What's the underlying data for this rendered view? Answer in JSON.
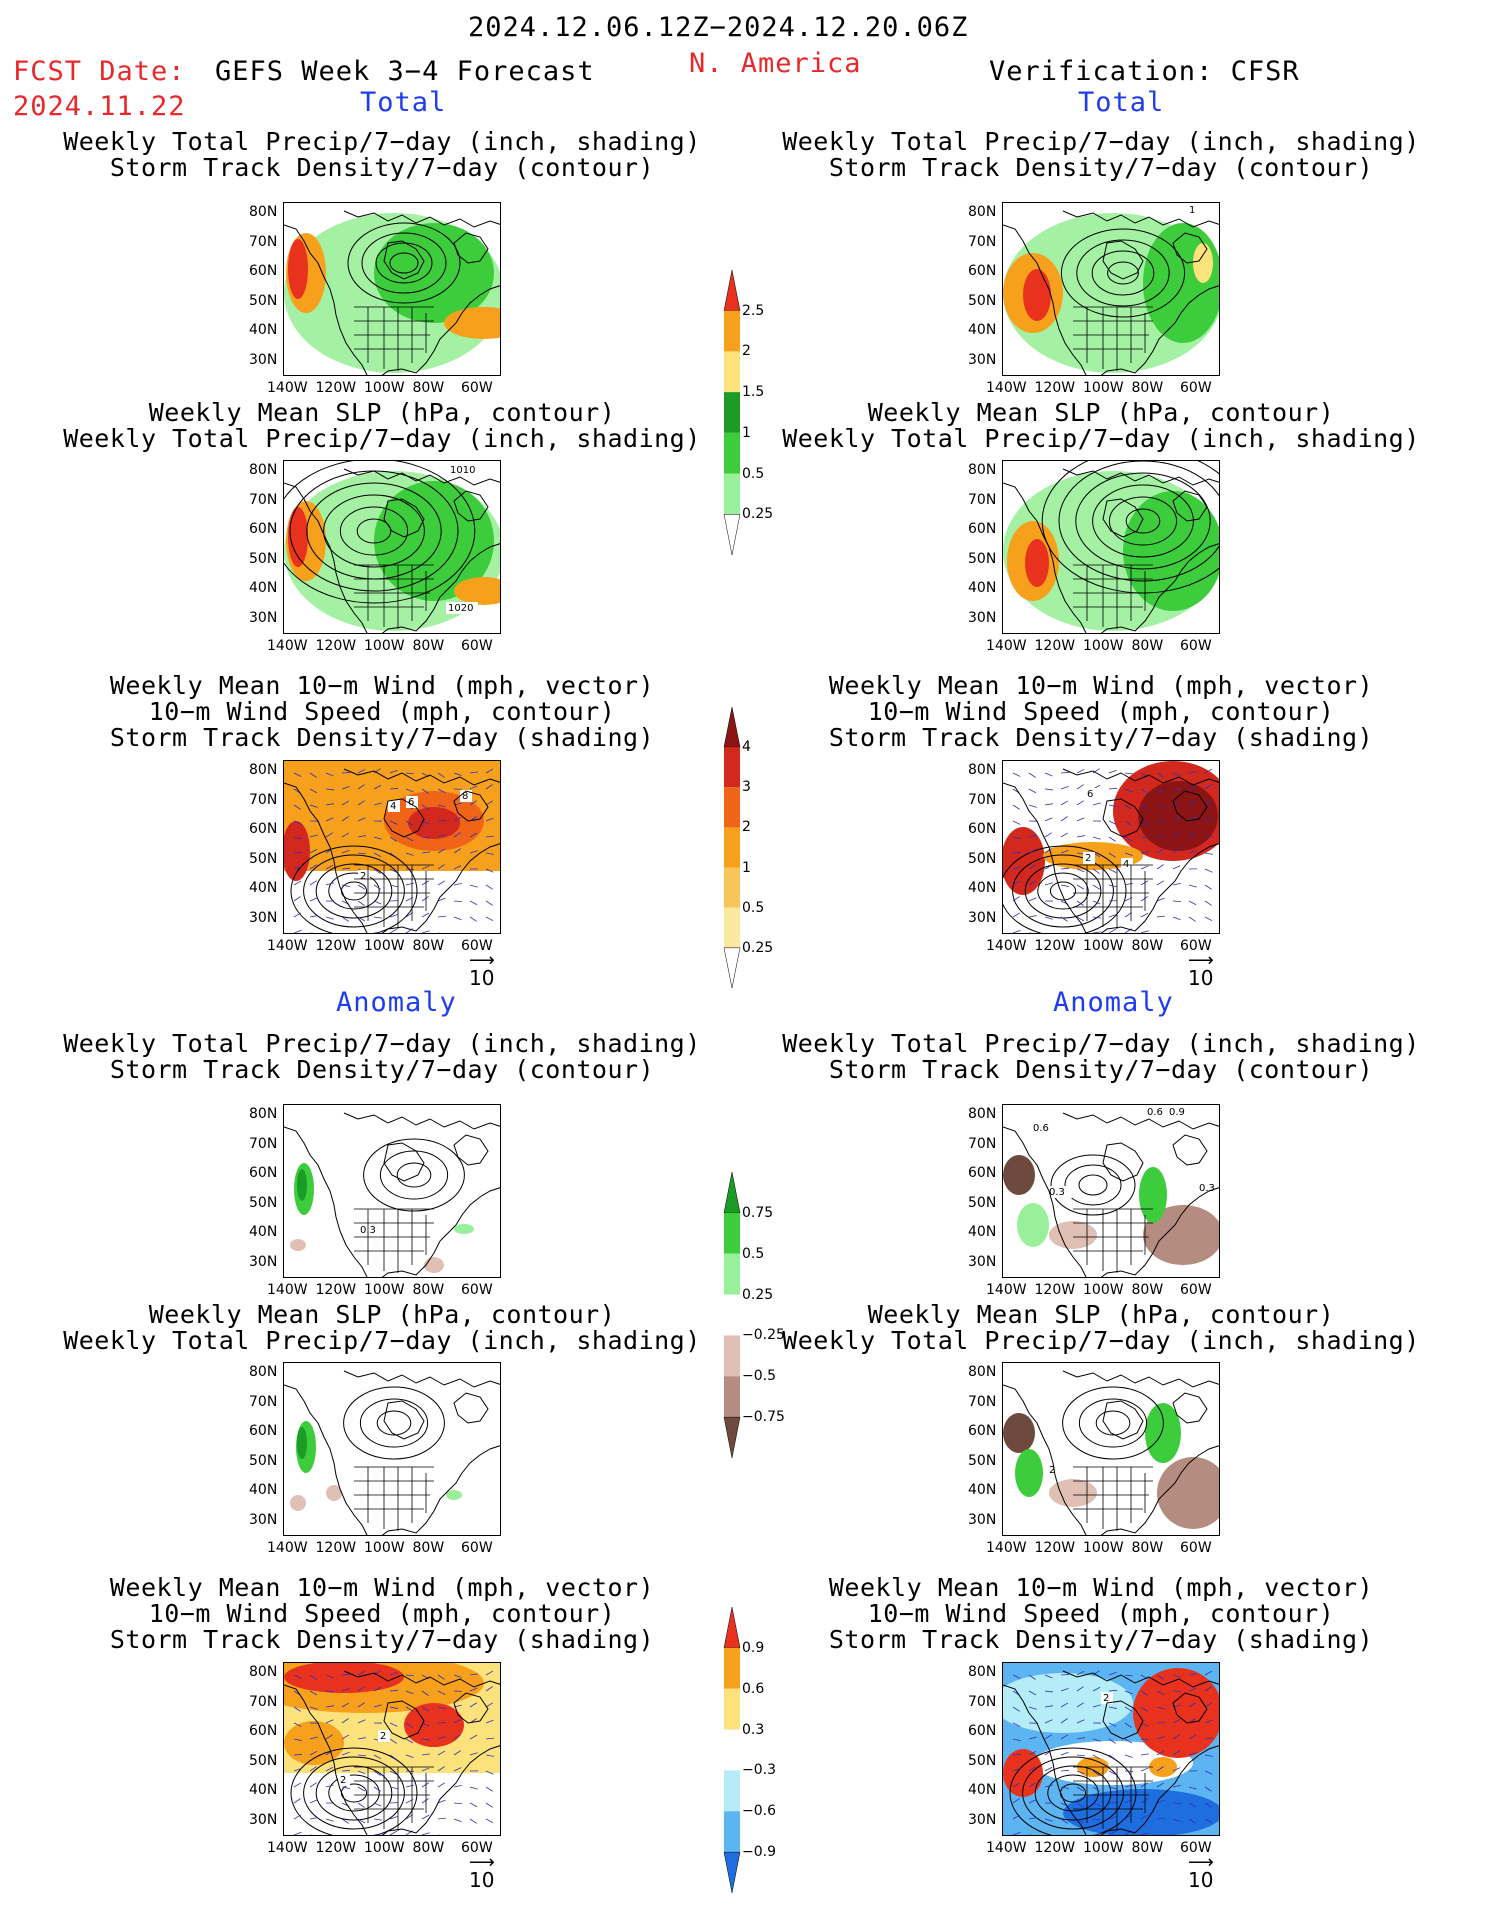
{
  "header": {
    "date_range": "2024.12.06.12Z−2024.12.20.06Z",
    "fcst_label": "FCST Date:",
    "fcst_date": "2024.11.22",
    "product": "GEFS Week 3−4 Forecast",
    "region": "N. America",
    "verification": "Verification: CFSR"
  },
  "sections": {
    "total": "Total",
    "anomaly": "Anomaly"
  },
  "titles": {
    "precip_storm": [
      "Weekly Total Precip/7−day (inch, shading)",
      "Storm Track Density/7−day (contour)"
    ],
    "slp_precip": [
      "Weekly Mean SLP (hPa, contour)",
      "Weekly Total Precip/7−day (inch, shading)"
    ],
    "wind_storm": [
      "Weekly Mean 10−m Wind (mph, vector)",
      "10−m Wind Speed (mph, contour)",
      "Storm Track Density/7−day (shading)"
    ]
  },
  "axes": {
    "lat_labels": [
      "80N",
      "70N",
      "60N",
      "50N",
      "40N",
      "30N"
    ],
    "lon_labels": [
      "140W",
      "120W",
      "100W",
      "80W",
      "60W"
    ]
  },
  "vector_ref": "10",
  "contour_labels": {
    "total_slp_a": "1010",
    "total_slp_b": "1020",
    "total_storm_cfsr": "1",
    "wind_gefs": [
      "4",
      "6",
      "8",
      "2"
    ],
    "wind_cfsr": [
      "2",
      "4",
      "6"
    ],
    "anom_storm_gefs": "0.3",
    "anom_storm_cfsr": [
      "0.6",
      "0.9",
      "0.6",
      "0.3",
      "0.3"
    ],
    "anom_slp_cfsr": "2",
    "anom_wind_gefs": [
      "2",
      "2"
    ],
    "anom_wind_cfsr": [
      "2"
    ]
  },
  "colorbars": {
    "precip_total": {
      "labels": [
        "2.5",
        "2",
        "1.5",
        "1",
        "0.5",
        "0.25"
      ],
      "colors": [
        "#e8321e",
        "#f7a01c",
        "#fbe27a",
        "#1a9c26",
        "#3ccc3c",
        "#9af09a",
        "#ffffff"
      ]
    },
    "storm_total": {
      "labels": [
        "4",
        "3",
        "2",
        "1",
        "0.5",
        "0.25"
      ],
      "colors": [
        "#8c1414",
        "#d2281e",
        "#f06418",
        "#f7a01c",
        "#f9c45a",
        "#fbe8a0",
        "#ffffff"
      ]
    },
    "precip_anom": {
      "labels": [
        "0.75",
        "0.5",
        "0.25",
        "−0.25",
        "−0.5",
        "−0.75"
      ],
      "colors": [
        "#1a9c26",
        "#3ccc3c",
        "#9af09a",
        "#ffffff",
        "#e0c0b4",
        "#b48c80",
        "#6e4a3e"
      ]
    },
    "storm_anom": {
      "labels": [
        "0.9",
        "0.6",
        "0.3",
        "−0.3",
        "−0.6",
        "−0.9"
      ],
      "colors": [
        "#e8321e",
        "#f7a01c",
        "#fbe27a",
        "#ffffff",
        "#b4ecf8",
        "#5cb4f0",
        "#1e6ee0"
      ]
    }
  }
}
